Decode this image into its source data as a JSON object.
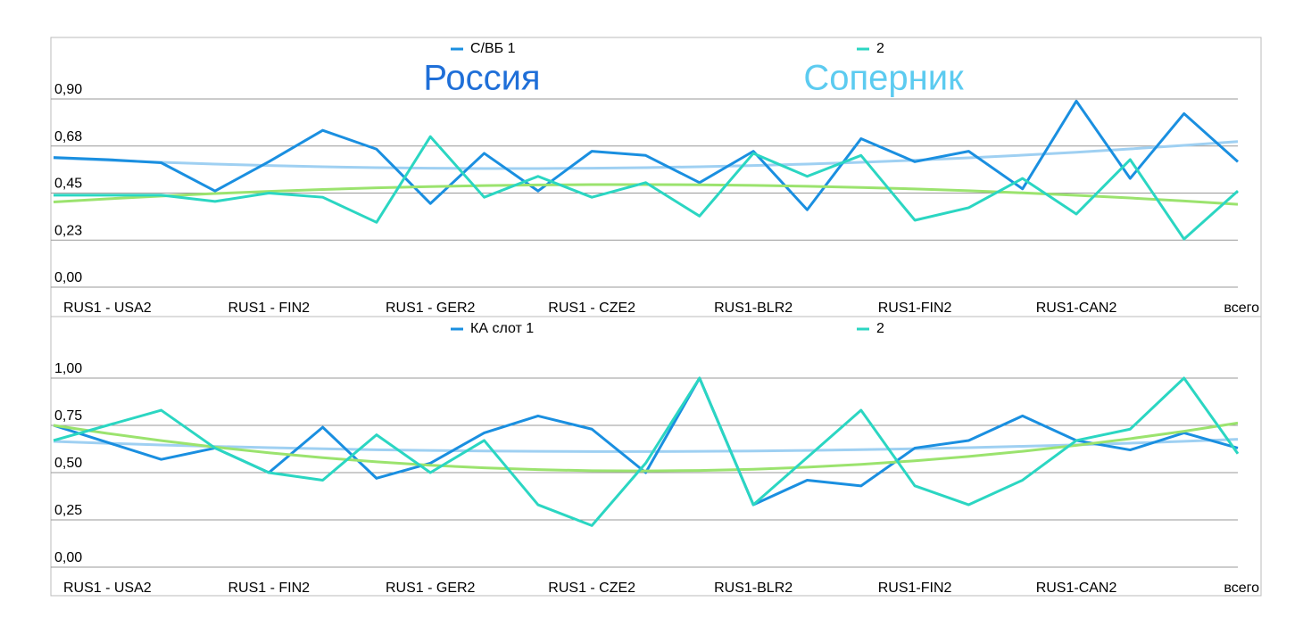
{
  "chart_data": [
    {
      "type": "line",
      "categories": [
        null,
        "RUS1 - USA2",
        null,
        null,
        "RUS1 - FIN2",
        null,
        null,
        "RUS1 - GER2",
        null,
        null,
        "RUS1 - CZE2",
        null,
        null,
        "RUS1-BLR2",
        null,
        null,
        "RUS1-FIN2",
        null,
        null,
        "RUS1-CAN2",
        null,
        null,
        "всего"
      ],
      "series": [
        {
          "name": "С/ВБ 1",
          "color": "#1a8fe0",
          "trend_color": "#9fd0f2",
          "values": [
            0.62,
            0.61,
            0.595,
            0.46,
            0.6,
            0.75,
            0.66,
            0.4,
            0.64,
            0.46,
            0.65,
            0.63,
            0.5,
            0.65,
            0.37,
            0.71,
            0.6,
            0.65,
            0.47,
            0.89,
            0.52,
            0.83,
            0.6
          ]
        },
        {
          "name": "2",
          "color": "#2bd6c2",
          "trend_color": "#9be36e",
          "values": [
            0.44,
            0.44,
            0.44,
            0.41,
            0.45,
            0.43,
            0.31,
            0.72,
            0.43,
            0.53,
            0.43,
            0.5,
            0.34,
            0.64,
            0.53,
            0.63,
            0.32,
            0.38,
            0.52,
            0.35,
            0.61,
            0.23,
            0.46
          ]
        }
      ],
      "annotations": [
        {
          "text": "Россия",
          "color": "#1f6fd8"
        },
        {
          "text": "Соперник",
          "color": "#5ccbf0"
        }
      ],
      "ylim": [
        0,
        0.9
      ],
      "yticks": [
        {
          "value": 0,
          "label": "0,00"
        },
        {
          "value": 0.225,
          "label": "0,23"
        },
        {
          "value": 0.45,
          "label": "0,45"
        },
        {
          "value": 0.675,
          "label": "0,68"
        },
        {
          "value": 0.9,
          "label": "0,90"
        }
      ],
      "grid": true,
      "trendline": "poly2",
      "legend": "top"
    },
    {
      "type": "line",
      "categories": [
        null,
        "RUS1 - USA2",
        null,
        null,
        "RUS1 - FIN2",
        null,
        null,
        "RUS1 - GER2",
        null,
        null,
        "RUS1 - CZE2",
        null,
        null,
        "RUS1-BLR2",
        null,
        null,
        "RUS1-FIN2",
        null,
        null,
        "RUS1-CAN2",
        null,
        null,
        "всего"
      ],
      "series": [
        {
          "name": "КА слот 1",
          "color": "#1a8fe0",
          "trend_color": "#9fd0f2",
          "values": [
            0.75,
            0.66,
            0.57,
            0.63,
            0.5,
            0.74,
            0.47,
            0.55,
            0.71,
            0.8,
            0.73,
            0.5,
            1.0,
            0.33,
            0.46,
            0.43,
            0.63,
            0.67,
            0.8,
            0.67,
            0.62,
            0.71,
            0.63
          ]
        },
        {
          "name": "2",
          "color": "#2bd6c2",
          "trend_color": "#9be36e",
          "values": [
            0.67,
            0.75,
            0.83,
            0.63,
            0.5,
            0.46,
            0.7,
            0.5,
            0.67,
            0.33,
            0.22,
            0.55,
            1.0,
            0.33,
            0.58,
            0.83,
            0.43,
            0.33,
            0.46,
            0.67,
            0.73,
            1.0,
            0.6
          ]
        }
      ],
      "ylim": [
        0,
        1
      ],
      "yticks": [
        {
          "value": 0,
          "label": "0,00"
        },
        {
          "value": 0.25,
          "label": "0,25"
        },
        {
          "value": 0.5,
          "label": "0,50"
        },
        {
          "value": 0.75,
          "label": "0,75"
        },
        {
          "value": 1,
          "label": "1,00"
        }
      ],
      "grid": true,
      "trendline": "poly2",
      "legend": "top"
    }
  ]
}
